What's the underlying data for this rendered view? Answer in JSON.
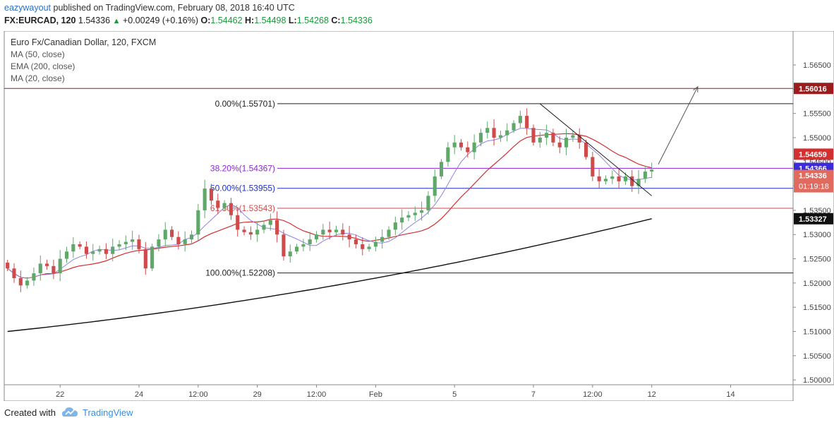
{
  "header": {
    "author": "eazywayout",
    "published": " published on TradingView.com, February 08, 2018 16:40 UTC",
    "symbol": "FX:EURCAD, 120",
    "last": "1.54336",
    "change": "+0.00249 (+0.16%)",
    "o_label": "O:",
    "o": "1.54462",
    "h_label": "H:",
    "h": "1.54498",
    "l_label": "L:",
    "l": "1.54268",
    "c_label": "C:",
    "c": "1.54336"
  },
  "footer": {
    "created": "Created with",
    "brand": "TradingView"
  },
  "colors": {
    "up": "#5fa86a",
    "down": "#cf4a4a",
    "ma50": "#d32f2f",
    "ema200": "#111111",
    "ma20": "#8c84e6",
    "fib_0": "#222222",
    "fib_382": "#8e24d6",
    "fib_50": "#1e2ec8",
    "fib_618": "#d14a4a",
    "resistance": "#9b1c1c"
  },
  "chart_data": {
    "type": "candlestick",
    "title": "Euro Fx/Canadian Dollar, 120, FXCM",
    "indicators": [
      "MA (50, close)",
      "EMA (200, close)",
      "MA (20, close)"
    ],
    "y_range": [
      1.499,
      1.572
    ],
    "y_ticks": [
      "1.56500",
      "1.56000",
      "1.55500",
      "1.55000",
      "1.54500",
      "1.54000",
      "1.53500",
      "1.53000",
      "1.52500",
      "1.52000",
      "1.51500",
      "1.51000",
      "1.50500",
      "1.50000"
    ],
    "x_ticks": [
      {
        "label": "22",
        "i": 8
      },
      {
        "label": "24",
        "i": 20
      },
      {
        "label": "12:00",
        "i": 29
      },
      {
        "label": "29",
        "i": 38
      },
      {
        "label": "12:00",
        "i": 47
      },
      {
        "label": "Feb",
        "i": 56
      },
      {
        "label": "5",
        "i": 68
      },
      {
        "label": "7",
        "i": 80
      },
      {
        "label": "12:00",
        "i": 89
      },
      {
        "label": "12",
        "i": 98
      },
      {
        "label": "14",
        "i": 110
      }
    ],
    "x_range": [
      0,
      119
    ],
    "closes": [
      1.523,
      1.521,
      1.5195,
      1.5205,
      1.522,
      1.524,
      1.5235,
      1.522,
      1.525,
      1.5265,
      1.528,
      1.5275,
      1.526,
      1.5265,
      1.527,
      1.526,
      1.5275,
      1.528,
      1.5285,
      1.529,
      1.527,
      1.523,
      1.5275,
      1.529,
      1.531,
      1.5295,
      1.528,
      1.529,
      1.53,
      1.535,
      1.5395,
      1.537,
      1.5355,
      1.5365,
      1.534,
      1.531,
      1.5305,
      1.53,
      1.531,
      1.532,
      1.533,
      1.53,
      1.5255,
      1.5265,
      1.5275,
      1.528,
      1.529,
      1.53,
      1.531,
      1.5305,
      1.531,
      1.53,
      1.529,
      1.528,
      1.527,
      1.5275,
      1.5285,
      1.5295,
      1.531,
      1.5325,
      1.5335,
      1.534,
      1.5345,
      1.535,
      1.538,
      1.542,
      1.545,
      1.548,
      1.549,
      1.548,
      1.547,
      1.549,
      1.551,
      1.552,
      1.55,
      1.5505,
      1.5515,
      1.553,
      1.5545,
      1.552,
      1.549,
      1.55,
      1.551,
      1.549,
      1.548,
      1.55,
      1.5505,
      1.549,
      1.546,
      1.542,
      1.541,
      1.5415,
      1.542,
      1.541,
      1.542,
      1.54,
      1.5415,
      1.543,
      1.5434
    ],
    "ma20_end": 1.54366,
    "ma50_end": 1.54659,
    "ema200_end": 1.53327,
    "fib_levels": [
      {
        "label": "0.00%(1.55701)",
        "value": 1.55701
      },
      {
        "label": "38.20%(1.54367)",
        "value": 1.54367
      },
      {
        "label": "50.00%(1.53955)",
        "value": 1.53955
      },
      {
        "label": "61.80%(1.53543)",
        "value": 1.53543
      },
      {
        "label": "100.00%(1.52208)",
        "value": 1.52208
      }
    ],
    "resistance": {
      "value": 1.56016,
      "label": "1.56016"
    },
    "price_labels": [
      {
        "value": 1.54659,
        "label": "1.54659"
      },
      {
        "value": 1.54366,
        "label": "1.54366"
      },
      {
        "value": 1.54336,
        "label": "1.54336"
      },
      {
        "value": 1.53327,
        "label": "1.53327"
      }
    ],
    "countdown": "01:19:18",
    "trendline": [
      {
        "i": 81,
        "p": 1.557
      },
      {
        "i": 98,
        "p": 1.538
      }
    ],
    "arrow": [
      {
        "i": 99,
        "p": 1.5445
      },
      {
        "i": 105,
        "p": 1.5605
      }
    ]
  }
}
